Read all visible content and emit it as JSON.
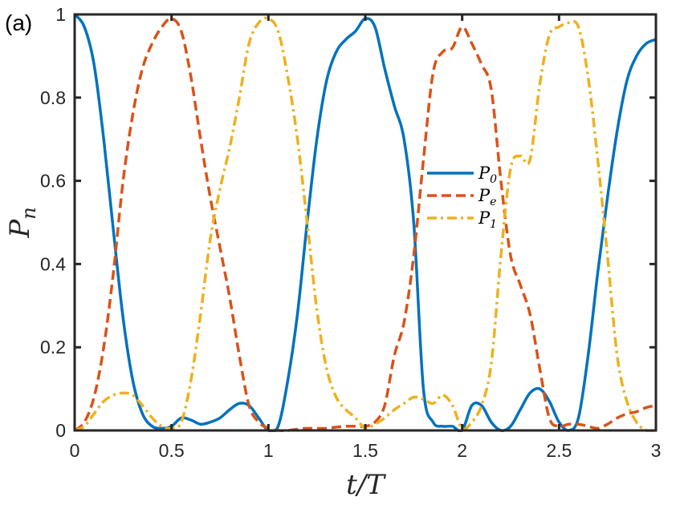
{
  "panel_label": "(a)",
  "chart_data": {
    "type": "line",
    "title": "",
    "xlabel": "t/T",
    "ylabel": "P_n",
    "xlim": [
      0,
      3
    ],
    "ylim": [
      0,
      1
    ],
    "xticks": [
      "0",
      "0.5",
      "1",
      "1.5",
      "2",
      "2.5",
      "3"
    ],
    "yticks": [
      "0",
      "0.2",
      "0.4",
      "0.6",
      "0.8",
      "1"
    ],
    "grid": false,
    "legend_position": "center-right",
    "legend": [
      {
        "main": "P",
        "sub": "0"
      },
      {
        "main": "P",
        "sub": "e"
      },
      {
        "main": "P",
        "sub": "1"
      }
    ],
    "series": [
      {
        "name": "P0",
        "color": "#0072BD",
        "style": "solid",
        "x": [
          0,
          0.05,
          0.1,
          0.15,
          0.2,
          0.25,
          0.3,
          0.35,
          0.4,
          0.45,
          0.5,
          0.55,
          0.6,
          0.65,
          0.7,
          0.75,
          0.8,
          0.85,
          0.9,
          0.95,
          1.0,
          1.05,
          1.1,
          1.15,
          1.2,
          1.25,
          1.3,
          1.35,
          1.4,
          1.45,
          1.5,
          1.55,
          1.6,
          1.65,
          1.7,
          1.75,
          1.8,
          1.85,
          1.9,
          1.95,
          2.0,
          2.05,
          2.1,
          2.15,
          2.2,
          2.25,
          2.3,
          2.35,
          2.4,
          2.45,
          2.5,
          2.55,
          2.6,
          2.65,
          2.7,
          2.75,
          2.8,
          2.85,
          2.9,
          2.95,
          3.0
        ],
        "y": [
          1.0,
          0.97,
          0.88,
          0.7,
          0.48,
          0.27,
          0.12,
          0.04,
          0.01,
          0.005,
          0.01,
          0.03,
          0.025,
          0.015,
          0.02,
          0.03,
          0.05,
          0.065,
          0.06,
          0.03,
          0.0,
          0.01,
          0.12,
          0.28,
          0.5,
          0.7,
          0.84,
          0.91,
          0.94,
          0.96,
          0.99,
          0.97,
          0.87,
          0.78,
          0.7,
          0.5,
          0.1,
          0.02,
          0.01,
          0.01,
          0.0,
          0.06,
          0.06,
          0.02,
          0.0,
          0.01,
          0.05,
          0.09,
          0.1,
          0.07,
          0.02,
          0.0,
          0.03,
          0.18,
          0.38,
          0.56,
          0.72,
          0.84,
          0.9,
          0.93,
          0.94
        ]
      },
      {
        "name": "Pe",
        "color": "#D95319",
        "style": "dashed",
        "x": [
          0,
          0.05,
          0.1,
          0.15,
          0.2,
          0.25,
          0.3,
          0.35,
          0.4,
          0.45,
          0.5,
          0.55,
          0.6,
          0.65,
          0.7,
          0.75,
          0.8,
          0.85,
          0.9,
          0.95,
          1.0,
          1.05,
          1.1,
          1.15,
          1.2,
          1.25,
          1.3,
          1.35,
          1.4,
          1.45,
          1.5,
          1.55,
          1.6,
          1.65,
          1.7,
          1.75,
          1.8,
          1.85,
          1.9,
          1.95,
          2.0,
          2.05,
          2.1,
          2.15,
          2.2,
          2.25,
          2.3,
          2.35,
          2.4,
          2.45,
          2.5,
          2.55,
          2.6,
          2.65,
          2.7,
          2.75,
          2.8,
          2.85,
          2.9,
          2.95,
          3.0
        ],
        "y": [
          0.0,
          0.02,
          0.08,
          0.2,
          0.38,
          0.6,
          0.76,
          0.87,
          0.93,
          0.97,
          0.99,
          0.96,
          0.85,
          0.7,
          0.56,
          0.44,
          0.32,
          0.18,
          0.06,
          0.02,
          0.005,
          0.0,
          0.0,
          0.003,
          0.005,
          0.005,
          0.005,
          0.008,
          0.01,
          0.01,
          0.01,
          0.02,
          0.06,
          0.18,
          0.26,
          0.42,
          0.65,
          0.86,
          0.91,
          0.92,
          0.97,
          0.93,
          0.88,
          0.82,
          0.6,
          0.42,
          0.35,
          0.28,
          0.15,
          0.03,
          0.01,
          0.015,
          0.015,
          0.01,
          0.005,
          0.015,
          0.03,
          0.04,
          0.045,
          0.055,
          0.06
        ]
      },
      {
        "name": "P1",
        "color": "#EDB120",
        "style": "dashdot",
        "x": [
          0,
          0.05,
          0.1,
          0.15,
          0.2,
          0.25,
          0.3,
          0.35,
          0.4,
          0.45,
          0.5,
          0.55,
          0.6,
          0.65,
          0.7,
          0.75,
          0.8,
          0.85,
          0.9,
          0.95,
          1.0,
          1.05,
          1.1,
          1.15,
          1.2,
          1.25,
          1.3,
          1.35,
          1.4,
          1.45,
          1.5,
          1.55,
          1.6,
          1.65,
          1.7,
          1.75,
          1.8,
          1.85,
          1.9,
          1.95,
          2.0,
          2.05,
          2.1,
          2.15,
          2.2,
          2.25,
          2.3,
          2.35,
          2.4,
          2.45,
          2.5,
          2.55,
          2.6,
          2.65,
          2.7,
          2.75,
          2.8,
          2.85,
          2.9,
          2.95,
          3.0
        ],
        "y": [
          0.0,
          0.01,
          0.04,
          0.07,
          0.085,
          0.09,
          0.085,
          0.06,
          0.03,
          0.01,
          0.005,
          0.02,
          0.12,
          0.28,
          0.46,
          0.58,
          0.68,
          0.8,
          0.93,
          0.98,
          0.99,
          0.96,
          0.85,
          0.7,
          0.5,
          0.29,
          0.15,
          0.08,
          0.05,
          0.03,
          0.005,
          0.015,
          0.03,
          0.05,
          0.065,
          0.08,
          0.075,
          0.065,
          0.085,
          0.06,
          0.005,
          0.02,
          0.06,
          0.16,
          0.42,
          0.63,
          0.66,
          0.65,
          0.83,
          0.95,
          0.97,
          0.98,
          0.97,
          0.85,
          0.65,
          0.42,
          0.18,
          0.07,
          0.02,
          0.0,
          0.0
        ]
      }
    ]
  }
}
